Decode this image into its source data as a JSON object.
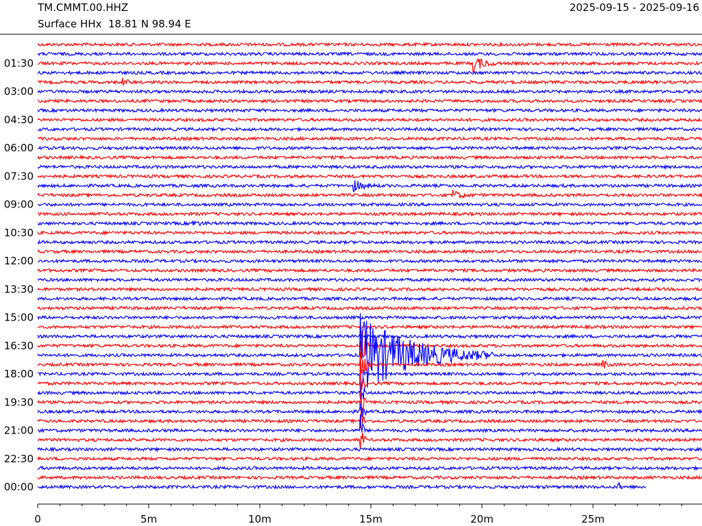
{
  "chart_data": {
    "type": "helicorder",
    "station": "TM.CMMT.00.HHZ",
    "location": "Surface HHx  18.81 N 98.94 E",
    "date_range": "2025-09-15 - 2025-09-16",
    "xlim": [
      0,
      30
    ],
    "xticks": [
      {
        "value": 0,
        "label": "0"
      },
      {
        "value": 5,
        "label": "5m"
      },
      {
        "value": 10,
        "label": "10m"
      },
      {
        "value": 15,
        "label": "15m"
      },
      {
        "value": 20,
        "label": "20m"
      },
      {
        "value": 25,
        "label": "25m"
      }
    ],
    "row_labels": [
      "01:30",
      "03:00",
      "04:30",
      "06:00",
      "07:30",
      "09:00",
      "10:30",
      "12:00",
      "13:30",
      "15:00",
      "16:30",
      "18:00",
      "19:30",
      "21:00",
      "22:30",
      "00:00"
    ],
    "trace_colors": [
      "#ff0000",
      "#0000ff"
    ]
  }
}
